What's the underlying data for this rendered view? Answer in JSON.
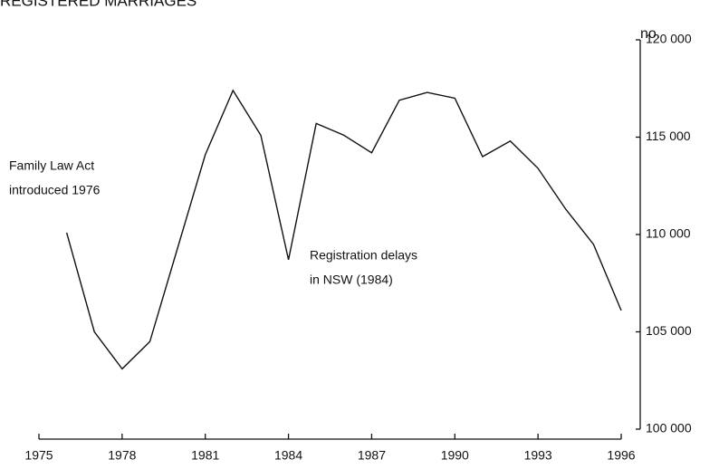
{
  "chart_data": {
    "type": "line",
    "title": "REGISTERED MARRIAGES",
    "y_axis_label": "no.",
    "x": [
      1976,
      1977,
      1978,
      1979,
      1980,
      1981,
      1982,
      1983,
      1984,
      1985,
      1986,
      1987,
      1988,
      1989,
      1990,
      1991,
      1992,
      1993,
      1994,
      1995,
      1996
    ],
    "series": [
      {
        "name": "Registered marriages",
        "color": "#111111",
        "values": [
          110100,
          105000,
          103100,
          104500,
          109300,
          114100,
          117400,
          115100,
          108700,
          115700,
          115100,
          114200,
          116900,
          117300,
          117000,
          114000,
          114800,
          113400,
          111300,
          109500,
          106100
        ]
      }
    ],
    "xlim": [
      1975,
      1996
    ],
    "xticks": [
      1975,
      1978,
      1981,
      1984,
      1987,
      1990,
      1993,
      1996
    ],
    "ylim": [
      100000,
      120000
    ],
    "yticks": [
      {
        "value": 100000,
        "label": "100 000"
      },
      {
        "value": 105000,
        "label": "105 000"
      },
      {
        "value": 110000,
        "label": "110 000"
      },
      {
        "value": 115000,
        "label": "115 000"
      },
      {
        "value": 120000,
        "label": "120 000"
      }
    ],
    "y_axis_side": "right",
    "grid": false,
    "annotations": [
      {
        "lines": [
          "Family Law Act",
          "introduced 1976"
        ]
      },
      {
        "lines": [
          "Registration delays",
          "in NSW (1984)"
        ]
      }
    ]
  }
}
